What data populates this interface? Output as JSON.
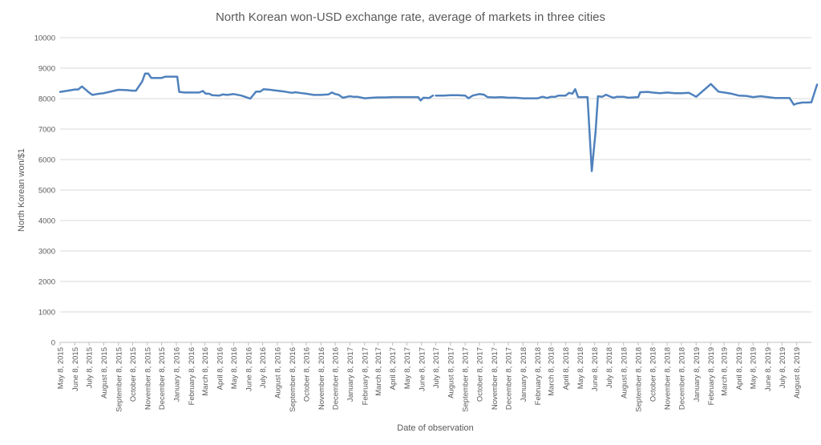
{
  "chart_data": {
    "type": "line",
    "title": "North Korean won-USD exchange rate, average of markets in three cities",
    "xlabel": "Date of observation",
    "ylabel": "North Korean won/$1",
    "ylim": [
      0,
      10000
    ],
    "yticks": [
      0,
      1000,
      2000,
      3000,
      4000,
      5000,
      6000,
      7000,
      8000,
      9000,
      10000
    ],
    "xlim": [
      "2015-05-08",
      "2019-09-08"
    ],
    "x_tick_labels": [
      {
        "date": "2015-05-08",
        "label": "May 8, 2015"
      },
      {
        "date": "2015-06-08",
        "label": "June 8, 2015"
      },
      {
        "date": "2015-07-08",
        "label": "July 8, 2015"
      },
      {
        "date": "2015-08-08",
        "label": "August 8, 2015"
      },
      {
        "date": "2015-09-08",
        "label": "September 8, 2015"
      },
      {
        "date": "2015-10-08",
        "label": "October 8, 2015"
      },
      {
        "date": "2015-11-08",
        "label": "November 8, 2015"
      },
      {
        "date": "2015-12-08",
        "label": "December 8, 2015"
      },
      {
        "date": "2016-01-08",
        "label": "January 8, 2016"
      },
      {
        "date": "2016-02-08",
        "label": "February 8, 2016"
      },
      {
        "date": "2016-03-08",
        "label": "March 8, 2016"
      },
      {
        "date": "2016-04-08",
        "label": "April 8, 2016"
      },
      {
        "date": "2016-05-08",
        "label": "May 8, 2016"
      },
      {
        "date": "2016-06-08",
        "label": "June 8, 2016"
      },
      {
        "date": "2016-07-08",
        "label": "July 8, 2016"
      },
      {
        "date": "2016-08-08",
        "label": "August 8, 2016"
      },
      {
        "date": "2016-09-08",
        "label": "September 8, 2016"
      },
      {
        "date": "2016-10-08",
        "label": "October 8, 2016"
      },
      {
        "date": "2016-11-08",
        "label": "November 8, 2016"
      },
      {
        "date": "2016-12-08",
        "label": "December 8, 2016"
      },
      {
        "date": "2017-01-08",
        "label": "January 8, 2017"
      },
      {
        "date": "2017-02-08",
        "label": "February 8, 2017"
      },
      {
        "date": "2017-03-08",
        "label": "March 8, 2017"
      },
      {
        "date": "2017-04-08",
        "label": "April 8, 2017"
      },
      {
        "date": "2017-05-08",
        "label": "May 8, 2017"
      },
      {
        "date": "2017-06-08",
        "label": "June 8, 2017"
      },
      {
        "date": "2017-07-08",
        "label": "July 8, 2017"
      },
      {
        "date": "2017-08-08",
        "label": "August 8, 2017"
      },
      {
        "date": "2017-09-08",
        "label": "September 8, 2017"
      },
      {
        "date": "2017-10-08",
        "label": "October 8, 2017"
      },
      {
        "date": "2017-11-08",
        "label": "November 8, 2017"
      },
      {
        "date": "2017-12-08",
        "label": "December 8, 2017"
      },
      {
        "date": "2018-01-08",
        "label": "January 8, 2018"
      },
      {
        "date": "2018-02-08",
        "label": "February 8, 2018"
      },
      {
        "date": "2018-03-08",
        "label": "March 8, 2018"
      },
      {
        "date": "2018-04-08",
        "label": "April 8, 2018"
      },
      {
        "date": "2018-05-08",
        "label": "May 8, 2018"
      },
      {
        "date": "2018-06-08",
        "label": "June 8, 2018"
      },
      {
        "date": "2018-07-08",
        "label": "July 8, 2018"
      },
      {
        "date": "2018-08-08",
        "label": "August 8, 2018"
      },
      {
        "date": "2018-09-08",
        "label": "September 8, 2018"
      },
      {
        "date": "2018-10-08",
        "label": "October 8, 2018"
      },
      {
        "date": "2018-11-08",
        "label": "November 8, 2018"
      },
      {
        "date": "2018-12-08",
        "label": "December 8, 2018"
      },
      {
        "date": "2019-01-08",
        "label": "January 8, 2019"
      },
      {
        "date": "2019-02-08",
        "label": "February 8, 2019"
      },
      {
        "date": "2019-03-08",
        "label": "March 8, 2019"
      },
      {
        "date": "2019-04-08",
        "label": "April 8, 2019"
      },
      {
        "date": "2019-05-08",
        "label": "May 8, 2019"
      },
      {
        "date": "2019-06-08",
        "label": "June 8, 2019"
      },
      {
        "date": "2019-07-08",
        "label": "July 8, 2019"
      },
      {
        "date": "2019-08-08",
        "label": "August 8, 2019"
      }
    ],
    "grid": true,
    "legend": "none",
    "color": "#4f81bd",
    "series": [
      {
        "segments": [
          [
            [
              "2015-05-08",
              8220
            ],
            [
              "2015-05-24",
              8260
            ],
            [
              "2015-06-08",
              8300
            ],
            [
              "2015-06-15",
              8300
            ],
            [
              "2015-06-23",
              8400
            ],
            [
              "2015-07-08",
              8200
            ],
            [
              "2015-07-15",
              8120
            ],
            [
              "2015-07-25",
              8150
            ],
            [
              "2015-08-08",
              8180
            ],
            [
              "2015-08-25",
              8240
            ],
            [
              "2015-09-08",
              8290
            ],
            [
              "2015-09-25",
              8280
            ],
            [
              "2015-10-08",
              8260
            ],
            [
              "2015-10-15",
              8260
            ],
            [
              "2015-10-28",
              8560
            ],
            [
              "2015-11-03",
              8820
            ],
            [
              "2015-11-10",
              8820
            ],
            [
              "2015-11-16",
              8680
            ],
            [
              "2015-11-25",
              8680
            ],
            [
              "2015-12-08",
              8680
            ],
            [
              "2015-12-16",
              8720
            ],
            [
              "2015-12-28",
              8720
            ],
            [
              "2016-01-10",
              8720
            ],
            [
              "2016-01-14",
              8220
            ],
            [
              "2016-01-25",
              8200
            ],
            [
              "2016-02-08",
              8200
            ],
            [
              "2016-02-25",
              8200
            ],
            [
              "2016-03-04",
              8250
            ],
            [
              "2016-03-10",
              8160
            ],
            [
              "2016-03-17",
              8160
            ],
            [
              "2016-03-24",
              8110
            ],
            [
              "2016-04-08",
              8100
            ],
            [
              "2016-04-15",
              8140
            ],
            [
              "2016-04-24",
              8120
            ],
            [
              "2016-05-08",
              8150
            ],
            [
              "2016-05-24",
              8100
            ],
            [
              "2016-06-08",
              8020
            ],
            [
              "2016-06-12",
              8000
            ],
            [
              "2016-06-24",
              8230
            ],
            [
              "2016-07-03",
              8230
            ],
            [
              "2016-07-10",
              8310
            ],
            [
              "2016-07-24",
              8290
            ],
            [
              "2016-08-08",
              8260
            ],
            [
              "2016-08-24",
              8230
            ],
            [
              "2016-09-08",
              8190
            ],
            [
              "2016-09-15",
              8210
            ],
            [
              "2016-09-24",
              8190
            ],
            [
              "2016-10-08",
              8160
            ],
            [
              "2016-10-24",
              8120
            ],
            [
              "2016-11-08",
              8120
            ],
            [
              "2016-11-24",
              8140
            ],
            [
              "2016-12-01",
              8200
            ],
            [
              "2016-12-08",
              8150
            ],
            [
              "2016-12-15",
              8130
            ],
            [
              "2016-12-24",
              8030
            ],
            [
              "2017-01-08",
              8080
            ],
            [
              "2017-01-15",
              8060
            ],
            [
              "2017-01-24",
              8060
            ],
            [
              "2017-02-08",
              8010
            ],
            [
              "2017-02-24",
              8030
            ],
            [
              "2017-03-08",
              8040
            ],
            [
              "2017-03-24",
              8040
            ],
            [
              "2017-04-08",
              8050
            ],
            [
              "2017-04-24",
              8050
            ],
            [
              "2017-05-08",
              8050
            ],
            [
              "2017-05-24",
              8050
            ],
            [
              "2017-06-01",
              8050
            ],
            [
              "2017-06-06",
              7940
            ],
            [
              "2017-06-12",
              8030
            ],
            [
              "2017-06-24",
              8020
            ],
            [
              "2017-07-02",
              8100
            ]
          ],
          [
            [
              "2017-07-08",
              8100
            ],
            [
              "2017-07-24",
              8100
            ],
            [
              "2017-08-08",
              8110
            ],
            [
              "2017-08-24",
              8110
            ],
            [
              "2017-09-08",
              8100
            ],
            [
              "2017-09-15",
              8010
            ],
            [
              "2017-09-24",
              8100
            ],
            [
              "2017-10-08",
              8150
            ],
            [
              "2017-10-18",
              8130
            ],
            [
              "2017-10-25",
              8050
            ],
            [
              "2017-11-08",
              8040
            ],
            [
              "2017-11-24",
              8050
            ],
            [
              "2017-12-08",
              8030
            ],
            [
              "2017-12-24",
              8030
            ],
            [
              "2018-01-08",
              8010
            ],
            [
              "2018-01-24",
              8010
            ],
            [
              "2018-02-08",
              8010
            ],
            [
              "2018-02-18",
              8060
            ],
            [
              "2018-02-28",
              8020
            ],
            [
              "2018-03-08",
              8060
            ],
            [
              "2018-03-17",
              8060
            ],
            [
              "2018-03-24",
              8100
            ],
            [
              "2018-04-08",
              8100
            ],
            [
              "2018-04-15",
              8190
            ],
            [
              "2018-04-22",
              8160
            ],
            [
              "2018-04-28",
              8310
            ],
            [
              "2018-05-04",
              8050
            ],
            [
              "2018-05-14",
              8050
            ],
            [
              "2018-05-24",
              8050
            ],
            [
              "2018-06-02",
              5620
            ],
            [
              "2018-06-10",
              6900
            ],
            [
              "2018-06-15",
              8080
            ],
            [
              "2018-06-24",
              8060
            ],
            [
              "2018-07-02",
              8130
            ],
            [
              "2018-07-10",
              8070
            ],
            [
              "2018-07-18",
              8030
            ],
            [
              "2018-07-25",
              8060
            ],
            [
              "2018-08-08",
              8060
            ],
            [
              "2018-08-18",
              8030
            ],
            [
              "2018-08-28",
              8040
            ],
            [
              "2018-09-08",
              8050
            ],
            [
              "2018-09-12",
              8210
            ],
            [
              "2018-09-28",
              8220
            ],
            [
              "2018-10-08",
              8200
            ],
            [
              "2018-10-24",
              8180
            ],
            [
              "2018-11-08",
              8200
            ],
            [
              "2018-11-24",
              8180
            ],
            [
              "2018-12-08",
              8180
            ],
            [
              "2018-12-24",
              8190
            ],
            [
              "2019-01-08",
              8060
            ],
            [
              "2019-02-08",
              8480
            ],
            [
              "2019-02-24",
              8230
            ],
            [
              "2019-03-08",
              8200
            ],
            [
              "2019-03-24",
              8160
            ],
            [
              "2019-04-08",
              8100
            ],
            [
              "2019-04-24",
              8090
            ],
            [
              "2019-05-08",
              8050
            ],
            [
              "2019-05-24",
              8080
            ],
            [
              "2019-06-08",
              8050
            ],
            [
              "2019-06-24",
              8020
            ],
            [
              "2019-07-08",
              8020
            ],
            [
              "2019-07-24",
              8020
            ],
            [
              "2019-08-02",
              7800
            ],
            [
              "2019-08-08",
              7840
            ],
            [
              "2019-08-20",
              7870
            ],
            [
              "2019-08-28",
              7870
            ],
            [
              "2019-09-08",
              7880
            ],
            [
              "2019-09-20",
              8460
            ]
          ]
        ]
      }
    ]
  }
}
